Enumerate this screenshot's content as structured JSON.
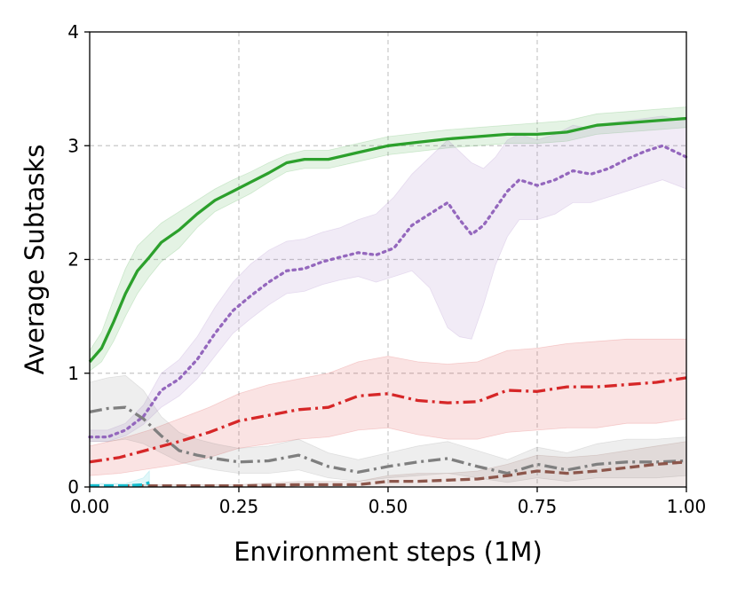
{
  "chart_data": {
    "type": "line",
    "xlabel": "Environment steps (1M)",
    "ylabel": "Average Subtasks",
    "xlim": [
      0,
      1
    ],
    "ylim": [
      0,
      4
    ],
    "x_ticks": [
      "0.00",
      "0.25",
      "0.50",
      "0.75",
      "1.00"
    ],
    "y_ticks": [
      "0",
      "1",
      "2",
      "3",
      "4"
    ],
    "grid": true,
    "legend": "none",
    "series": [
      {
        "color": "#2ca02c",
        "style": "solid",
        "x": [
          0.0,
          0.02,
          0.04,
          0.06,
          0.08,
          0.1,
          0.12,
          0.15,
          0.18,
          0.21,
          0.24,
          0.27,
          0.3,
          0.33,
          0.36,
          0.4,
          0.45,
          0.5,
          0.55,
          0.6,
          0.65,
          0.7,
          0.75,
          0.8,
          0.85,
          0.9,
          0.95,
          1.0
        ],
        "y": [
          1.1,
          1.22,
          1.45,
          1.7,
          1.9,
          2.02,
          2.15,
          2.26,
          2.4,
          2.52,
          2.6,
          2.68,
          2.76,
          2.85,
          2.88,
          2.88,
          2.94,
          3.0,
          3.03,
          3.06,
          3.08,
          3.1,
          3.1,
          3.12,
          3.18,
          3.2,
          3.22,
          3.24
        ],
        "lower": [
          1.02,
          1.1,
          1.28,
          1.5,
          1.7,
          1.85,
          1.98,
          2.1,
          2.28,
          2.42,
          2.5,
          2.58,
          2.68,
          2.77,
          2.8,
          2.8,
          2.86,
          2.92,
          2.95,
          2.98,
          3.0,
          3.02,
          3.02,
          3.04,
          3.1,
          3.12,
          3.14,
          3.16
        ],
        "upper": [
          1.2,
          1.36,
          1.65,
          1.92,
          2.12,
          2.22,
          2.32,
          2.42,
          2.52,
          2.62,
          2.7,
          2.77,
          2.85,
          2.92,
          2.96,
          2.96,
          3.02,
          3.08,
          3.11,
          3.14,
          3.16,
          3.18,
          3.2,
          3.22,
          3.28,
          3.3,
          3.32,
          3.34
        ]
      },
      {
        "color": "#9467bd",
        "style": "dotted",
        "x": [
          0.0,
          0.03,
          0.06,
          0.09,
          0.12,
          0.15,
          0.18,
          0.21,
          0.24,
          0.27,
          0.3,
          0.33,
          0.36,
          0.39,
          0.42,
          0.45,
          0.48,
          0.51,
          0.54,
          0.57,
          0.6,
          0.62,
          0.64,
          0.66,
          0.68,
          0.7,
          0.72,
          0.75,
          0.78,
          0.81,
          0.84,
          0.87,
          0.9,
          0.93,
          0.96,
          1.0
        ],
        "y": [
          0.44,
          0.44,
          0.5,
          0.62,
          0.85,
          0.95,
          1.12,
          1.35,
          1.55,
          1.68,
          1.8,
          1.9,
          1.92,
          1.98,
          2.02,
          2.06,
          2.04,
          2.1,
          2.3,
          2.4,
          2.5,
          2.35,
          2.22,
          2.3,
          2.45,
          2.6,
          2.7,
          2.65,
          2.7,
          2.78,
          2.75,
          2.8,
          2.88,
          2.95,
          3.0,
          2.9
        ],
        "lower": [
          0.4,
          0.4,
          0.45,
          0.55,
          0.7,
          0.8,
          0.95,
          1.15,
          1.35,
          1.48,
          1.6,
          1.7,
          1.72,
          1.78,
          1.82,
          1.85,
          1.8,
          1.85,
          1.9,
          1.75,
          1.4,
          1.32,
          1.3,
          1.6,
          1.95,
          2.2,
          2.35,
          2.35,
          2.4,
          2.5,
          2.5,
          2.55,
          2.6,
          2.65,
          2.7,
          2.62
        ],
        "upper": [
          0.5,
          0.5,
          0.56,
          0.72,
          1.0,
          1.12,
          1.32,
          1.58,
          1.8,
          1.96,
          2.08,
          2.16,
          2.18,
          2.24,
          2.28,
          2.35,
          2.4,
          2.55,
          2.75,
          2.9,
          3.05,
          2.95,
          2.85,
          2.8,
          2.9,
          3.05,
          3.1,
          3.05,
          3.1,
          3.18,
          3.15,
          3.2,
          3.22,
          3.24,
          3.26,
          3.22
        ]
      },
      {
        "color": "#d62728",
        "style": "dashdot",
        "x": [
          0.0,
          0.05,
          0.1,
          0.15,
          0.2,
          0.25,
          0.3,
          0.35,
          0.4,
          0.45,
          0.5,
          0.55,
          0.6,
          0.65,
          0.7,
          0.75,
          0.8,
          0.85,
          0.9,
          0.95,
          1.0
        ],
        "y": [
          0.22,
          0.26,
          0.33,
          0.4,
          0.48,
          0.58,
          0.63,
          0.68,
          0.7,
          0.8,
          0.82,
          0.76,
          0.74,
          0.75,
          0.85,
          0.84,
          0.88,
          0.88,
          0.9,
          0.92,
          0.96
        ],
        "lower": [
          0.1,
          0.12,
          0.16,
          0.2,
          0.26,
          0.34,
          0.38,
          0.42,
          0.44,
          0.5,
          0.52,
          0.46,
          0.42,
          0.42,
          0.48,
          0.5,
          0.52,
          0.52,
          0.56,
          0.56,
          0.6
        ],
        "upper": [
          0.36,
          0.42,
          0.5,
          0.6,
          0.7,
          0.82,
          0.9,
          0.95,
          1.0,
          1.1,
          1.15,
          1.1,
          1.08,
          1.1,
          1.2,
          1.22,
          1.26,
          1.28,
          1.3,
          1.3,
          1.3
        ]
      },
      {
        "color": "#7f7f7f",
        "style": "dashdot",
        "x": [
          0.0,
          0.03,
          0.06,
          0.09,
          0.12,
          0.15,
          0.18,
          0.21,
          0.25,
          0.3,
          0.35,
          0.4,
          0.45,
          0.5,
          0.55,
          0.6,
          0.65,
          0.7,
          0.75,
          0.8,
          0.85,
          0.9,
          0.95,
          1.0
        ],
        "y": [
          0.66,
          0.69,
          0.7,
          0.6,
          0.45,
          0.32,
          0.28,
          0.25,
          0.22,
          0.23,
          0.28,
          0.18,
          0.13,
          0.18,
          0.22,
          0.25,
          0.18,
          0.12,
          0.2,
          0.15,
          0.2,
          0.22,
          0.22,
          0.23
        ],
        "lower": [
          0.4,
          0.4,
          0.42,
          0.38,
          0.3,
          0.22,
          0.18,
          0.15,
          0.12,
          0.12,
          0.15,
          0.08,
          0.05,
          0.08,
          0.1,
          0.12,
          0.08,
          0.04,
          0.08,
          0.05,
          0.08,
          0.08,
          0.08,
          0.1
        ],
        "upper": [
          0.92,
          0.96,
          0.98,
          0.85,
          0.62,
          0.48,
          0.42,
          0.38,
          0.34,
          0.36,
          0.42,
          0.3,
          0.24,
          0.3,
          0.36,
          0.4,
          0.32,
          0.24,
          0.35,
          0.3,
          0.38,
          0.42,
          0.42,
          0.44
        ]
      },
      {
        "color": "#8c564b",
        "style": "dashed",
        "x": [
          0.05,
          0.15,
          0.25,
          0.35,
          0.45,
          0.5,
          0.55,
          0.6,
          0.65,
          0.7,
          0.75,
          0.8,
          0.85,
          0.9,
          0.95,
          1.0
        ],
        "y": [
          0.01,
          0.01,
          0.01,
          0.02,
          0.02,
          0.05,
          0.05,
          0.06,
          0.07,
          0.1,
          0.14,
          0.12,
          0.14,
          0.17,
          0.2,
          0.22
        ],
        "lower": [
          0.0,
          0.0,
          0.0,
          0.0,
          0.0,
          0.0,
          0.0,
          0.0,
          0.0,
          0.0,
          0.0,
          0.0,
          0.0,
          0.0,
          0.0,
          0.0
        ],
        "upper": [
          0.02,
          0.02,
          0.02,
          0.05,
          0.05,
          0.1,
          0.12,
          0.12,
          0.14,
          0.2,
          0.28,
          0.26,
          0.28,
          0.32,
          0.36,
          0.4
        ]
      },
      {
        "color": "#17becf",
        "style": "dashed",
        "x": [
          0.0,
          0.03,
          0.06,
          0.09,
          0.1
        ],
        "y": [
          0.01,
          0.01,
          0.01,
          0.02,
          0.04
        ],
        "lower": [
          0.0,
          0.0,
          0.0,
          0.0,
          0.0
        ],
        "upper": [
          0.03,
          0.03,
          0.03,
          0.08,
          0.14
        ]
      }
    ]
  }
}
